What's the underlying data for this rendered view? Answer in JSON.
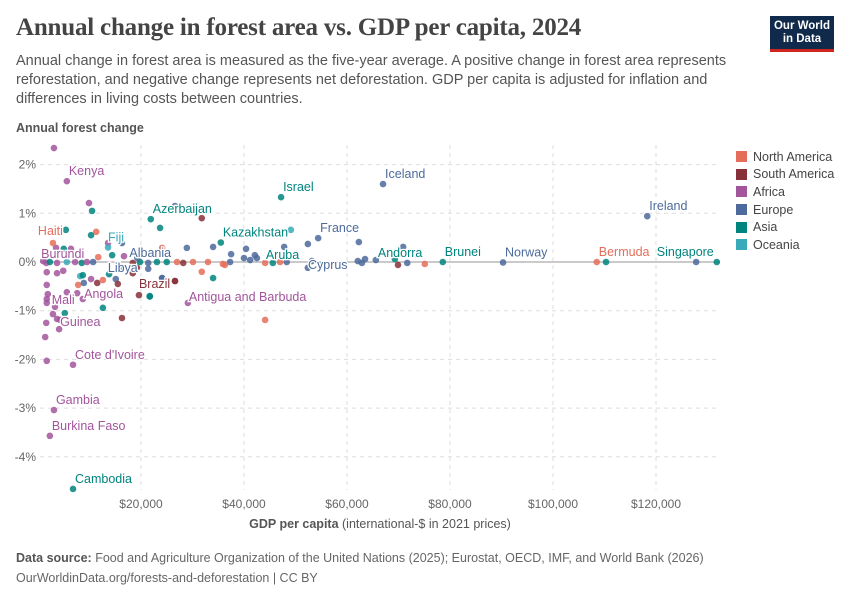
{
  "header": {
    "title": "Annual change in forest area vs. GDP per capita, 2024",
    "subtitle": "Annual change in forest area is measured as the five-year average. A positive change in forest area represents reforestation, and negative change represents net deforestation. GDP per capita is adjusted for inflation and differences in living costs between countries.",
    "logo": "Our World in Data"
  },
  "footer": {
    "source_label": "Data source:",
    "source": "Food and Agriculture Organization of the United Nations (2025); Eurostat, OECD, IMF, and World Bank (2026)",
    "url": "OurWorldinData.org/forests-and-deforestation | CC BY"
  },
  "chart_data": {
    "type": "scatter",
    "title": "Annual change in forest area vs. GDP per capita, 2024",
    "ylabel": "Annual forest change",
    "xlabel_bold": "GDP per capita",
    "xlabel_rest": "(international-$ in 2021 prices)",
    "xlim": [
      0,
      133000
    ],
    "ylim": [
      -4.7,
      2.5
    ],
    "x_ticks": [
      {
        "v": 20000,
        "label": "$20,000"
      },
      {
        "v": 40000,
        "label": "$40,000"
      },
      {
        "v": 60000,
        "label": "$60,000"
      },
      {
        "v": 80000,
        "label": "$80,000"
      },
      {
        "v": 100000,
        "label": "$100,000"
      },
      {
        "v": 120000,
        "label": "$120,000"
      }
    ],
    "y_ticks": [
      {
        "v": 2,
        "label": "2%"
      },
      {
        "v": 1,
        "label": "1%"
      },
      {
        "v": 0,
        "label": "0%"
      },
      {
        "v": -1,
        "label": "-1%"
      },
      {
        "v": -2,
        "label": "-2%"
      },
      {
        "v": -3,
        "label": "-3%"
      },
      {
        "v": -4,
        "label": "-4%"
      }
    ],
    "grid": true,
    "legend_position": "right",
    "series": [
      {
        "name": "North America",
        "key": "NA",
        "color": "#e56e5a"
      },
      {
        "name": "South America",
        "key": "SA",
        "color": "#883039"
      },
      {
        "name": "Africa",
        "key": "AF",
        "color": "#a2559c"
      },
      {
        "name": "Europe",
        "key": "EU",
        "color": "#4c6a9c"
      },
      {
        "name": "Asia",
        "key": "AS",
        "color": "#00847e"
      },
      {
        "name": "Oceania",
        "key": "OC",
        "color": "#38aaba"
      }
    ],
    "points": [
      [
        5600,
        1.66,
        "AF",
        "Kenya"
      ],
      [
        67000,
        1.6,
        "EU",
        "Iceland"
      ],
      [
        47200,
        1.33,
        "AS",
        "Israel"
      ],
      [
        118300,
        0.94,
        "EU",
        "Ireland"
      ],
      [
        21900,
        0.88,
        "AS",
        "Azerbaijan"
      ],
      [
        35500,
        0.4,
        "AS",
        "Kazakhstan"
      ],
      [
        54400,
        0.49,
        "EU",
        "France"
      ],
      [
        2900,
        0.39,
        "NA",
        "Haiti"
      ],
      [
        13600,
        0.3,
        "OC",
        "Fiji"
      ],
      [
        19300,
        0.08,
        "EU",
        "Albania"
      ],
      [
        69300,
        0.06,
        "AS",
        "Andorra"
      ],
      [
        45600,
        -0.02,
        "AS",
        "Aruba"
      ],
      [
        53200,
        0.02,
        "EU",
        "Cyprus"
      ],
      [
        78600,
        0.0,
        "AS",
        "Brunei"
      ],
      [
        90300,
        -0.01,
        "EU",
        "Norway"
      ],
      [
        108500,
        0.0,
        "NA",
        "Bermuda"
      ],
      [
        131800,
        0.0,
        "AS",
        "Singapore"
      ],
      [
        1000,
        0.02,
        "AF",
        "Burundi"
      ],
      [
        15900,
        -0.1,
        "EU",
        "Libya"
      ],
      [
        19600,
        -0.68,
        "SA",
        "Brazil"
      ],
      [
        29100,
        -0.84,
        "AF",
        "Antigua and Barbuda"
      ],
      [
        7600,
        -0.64,
        "AF",
        "Angola"
      ],
      [
        1700,
        -0.76,
        "AF",
        "Mali"
      ],
      [
        4300,
        -1.19,
        "AF",
        "Guinea"
      ],
      [
        6800,
        -2.11,
        "AF",
        "Cote d'Ivoire"
      ],
      [
        3100,
        -3.04,
        "AF",
        "Gambia"
      ],
      [
        2300,
        -3.57,
        "AF",
        "Burkina Faso"
      ],
      [
        6800,
        -4.66,
        "AS",
        "Cambodia"
      ],
      [
        3100,
        2.34,
        "AF"
      ],
      [
        9900,
        1.21,
        "AF"
      ],
      [
        10500,
        1.05,
        "AS"
      ],
      [
        11300,
        0.62,
        "NA"
      ],
      [
        10300,
        0.55,
        "AS"
      ],
      [
        5400,
        0.66,
        "AS"
      ],
      [
        3500,
        0.29,
        "AF"
      ],
      [
        5000,
        0.27,
        "AS"
      ],
      [
        6400,
        0.27,
        "AF"
      ],
      [
        13600,
        0.39,
        "AF"
      ],
      [
        16300,
        0.39,
        "EU"
      ],
      [
        14400,
        0.14,
        "AS"
      ],
      [
        16700,
        0.12,
        "AF"
      ],
      [
        11700,
        0.1,
        "NA"
      ],
      [
        1600,
        -0.02,
        "AF"
      ],
      [
        2300,
        0.0,
        "AS"
      ],
      [
        3700,
        -0.02,
        "AF"
      ],
      [
        5600,
        0.0,
        "OC"
      ],
      [
        7200,
        0.0,
        "AF"
      ],
      [
        8500,
        -0.02,
        "AS"
      ],
      [
        9500,
        0.0,
        "AF"
      ],
      [
        10700,
        0.0,
        "EU"
      ],
      [
        19800,
        0.0,
        "AS"
      ],
      [
        21400,
        -0.02,
        "EU"
      ],
      [
        23100,
        0.0,
        "AS"
      ],
      [
        25000,
        0.0,
        "AS"
      ],
      [
        27000,
        0.0,
        "NA"
      ],
      [
        28200,
        -0.02,
        "SA"
      ],
      [
        1700,
        -0.21,
        "AF"
      ],
      [
        3700,
        -0.23,
        "AF"
      ],
      [
        4900,
        -0.18,
        "AF"
      ],
      [
        8200,
        -0.29,
        "OC"
      ],
      [
        8700,
        -0.27,
        "AS"
      ],
      [
        13800,
        -0.25,
        "AS"
      ],
      [
        15100,
        -0.35,
        "EU"
      ],
      [
        10300,
        -0.35,
        "AF"
      ],
      [
        7800,
        -0.47,
        "NA"
      ],
      [
        8900,
        -0.43,
        "EU"
      ],
      [
        11500,
        -0.43,
        "SA"
      ],
      [
        12600,
        -0.37,
        "NA"
      ],
      [
        15500,
        -0.45,
        "SA"
      ],
      [
        18400,
        -0.23,
        "SA"
      ],
      [
        19200,
        -0.12,
        "SA"
      ],
      [
        18400,
        -0.02,
        "SA"
      ],
      [
        21400,
        -0.14,
        "EU"
      ],
      [
        24100,
        -0.33,
        "EU"
      ],
      [
        26600,
        -0.39,
        "SA"
      ],
      [
        16300,
        -1.15,
        "SA"
      ],
      [
        21700,
        -0.7,
        "AS"
      ],
      [
        12600,
        -0.94,
        "AS"
      ],
      [
        1700,
        -0.47,
        "AF"
      ],
      [
        1900,
        -0.66,
        "AF"
      ],
      [
        1700,
        -0.84,
        "AF"
      ],
      [
        3300,
        -0.92,
        "AF"
      ],
      [
        5200,
        -1.05,
        "AS"
      ],
      [
        2900,
        -1.07,
        "AF"
      ],
      [
        3700,
        -1.17,
        "AF"
      ],
      [
        1600,
        -1.25,
        "AF"
      ],
      [
        4100,
        -1.38,
        "AF"
      ],
      [
        1400,
        -1.54,
        "AF"
      ],
      [
        1700,
        -2.03,
        "AF"
      ],
      [
        8700,
        -0.76,
        "AF"
      ],
      [
        5600,
        -0.62,
        "AF"
      ],
      [
        26600,
        1.15,
        "EU"
      ],
      [
        31800,
        0.9,
        "SA"
      ],
      [
        23700,
        0.7,
        "AS"
      ],
      [
        49100,
        0.66,
        "OC"
      ],
      [
        52400,
        0.37,
        "EU"
      ],
      [
        62300,
        0.41,
        "EU"
      ],
      [
        34000,
        0.31,
        "EU"
      ],
      [
        28900,
        0.29,
        "EU"
      ],
      [
        40400,
        0.27,
        "EU"
      ],
      [
        47800,
        0.31,
        "EU"
      ],
      [
        37500,
        0.16,
        "EU"
      ],
      [
        42100,
        0.14,
        "EU"
      ],
      [
        40000,
        0.08,
        "EU"
      ],
      [
        41200,
        0.04,
        "EU"
      ],
      [
        42500,
        0.08,
        "EU"
      ],
      [
        24100,
        0.29,
        "NA"
      ],
      [
        31800,
        -0.2,
        "NA"
      ],
      [
        34000,
        -0.33,
        "AS"
      ],
      [
        24100,
        -0.33,
        "EU"
      ],
      [
        26600,
        -0.39,
        "SA"
      ],
      [
        21700,
        -0.71,
        "AS"
      ],
      [
        44100,
        -1.19,
        "NA"
      ],
      [
        52400,
        -0.12,
        "EU"
      ],
      [
        54800,
        -0.06,
        "OC"
      ],
      [
        30100,
        0.0,
        "NA"
      ],
      [
        33000,
        0.0,
        "NA"
      ],
      [
        35900,
        -0.04,
        "NA"
      ],
      [
        37300,
        0.0,
        "EU"
      ],
      [
        44100,
        -0.02,
        "NA"
      ],
      [
        47000,
        0.0,
        "NA"
      ],
      [
        48300,
        0.0,
        "EU"
      ],
      [
        36300,
        -0.06,
        "NA"
      ],
      [
        62100,
        0.02,
        "EU"
      ],
      [
        62900,
        -0.02,
        "EU"
      ],
      [
        63500,
        0.06,
        "EU"
      ],
      [
        65600,
        0.04,
        "EU"
      ],
      [
        69900,
        -0.06,
        "SA"
      ],
      [
        70900,
        0.31,
        "EU"
      ],
      [
        71700,
        -0.02,
        "EU"
      ],
      [
        75100,
        -0.04,
        "NA"
      ],
      [
        110300,
        0.0,
        "AS"
      ],
      [
        127800,
        0.0,
        "EU"
      ]
    ]
  }
}
